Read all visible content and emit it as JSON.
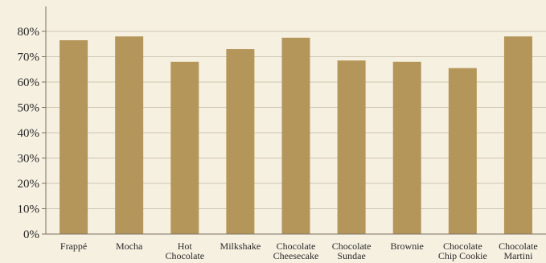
{
  "chart_data": {
    "type": "bar",
    "categories": [
      [
        "Frappé"
      ],
      [
        "Mocha"
      ],
      [
        "Hot",
        "Chocolate"
      ],
      [
        "Milkshake"
      ],
      [
        "Chocolate",
        "Cheesecake"
      ],
      [
        "Chocolate",
        "Sundae"
      ],
      [
        "Brownie"
      ],
      [
        "Chocolate",
        "Chip Cookie"
      ],
      [
        "Chocolate",
        "Martini"
      ]
    ],
    "values": [
      76.5,
      78.0,
      68.0,
      73.0,
      77.5,
      68.5,
      68.0,
      65.5,
      78.0
    ],
    "ylim": [
      0,
      85
    ],
    "yticks": [
      0,
      10,
      20,
      30,
      40,
      50,
      60,
      70,
      80
    ],
    "ytick_labels": [
      "0%",
      "10%",
      "20%",
      "30%",
      "40%",
      "50%",
      "60%",
      "70%",
      "80%"
    ],
    "grid": true,
    "colors": {
      "background": "#f6f0e1",
      "bar": "#b5965a",
      "grid": "#cfc6b3",
      "axis": "#7a7263"
    }
  }
}
